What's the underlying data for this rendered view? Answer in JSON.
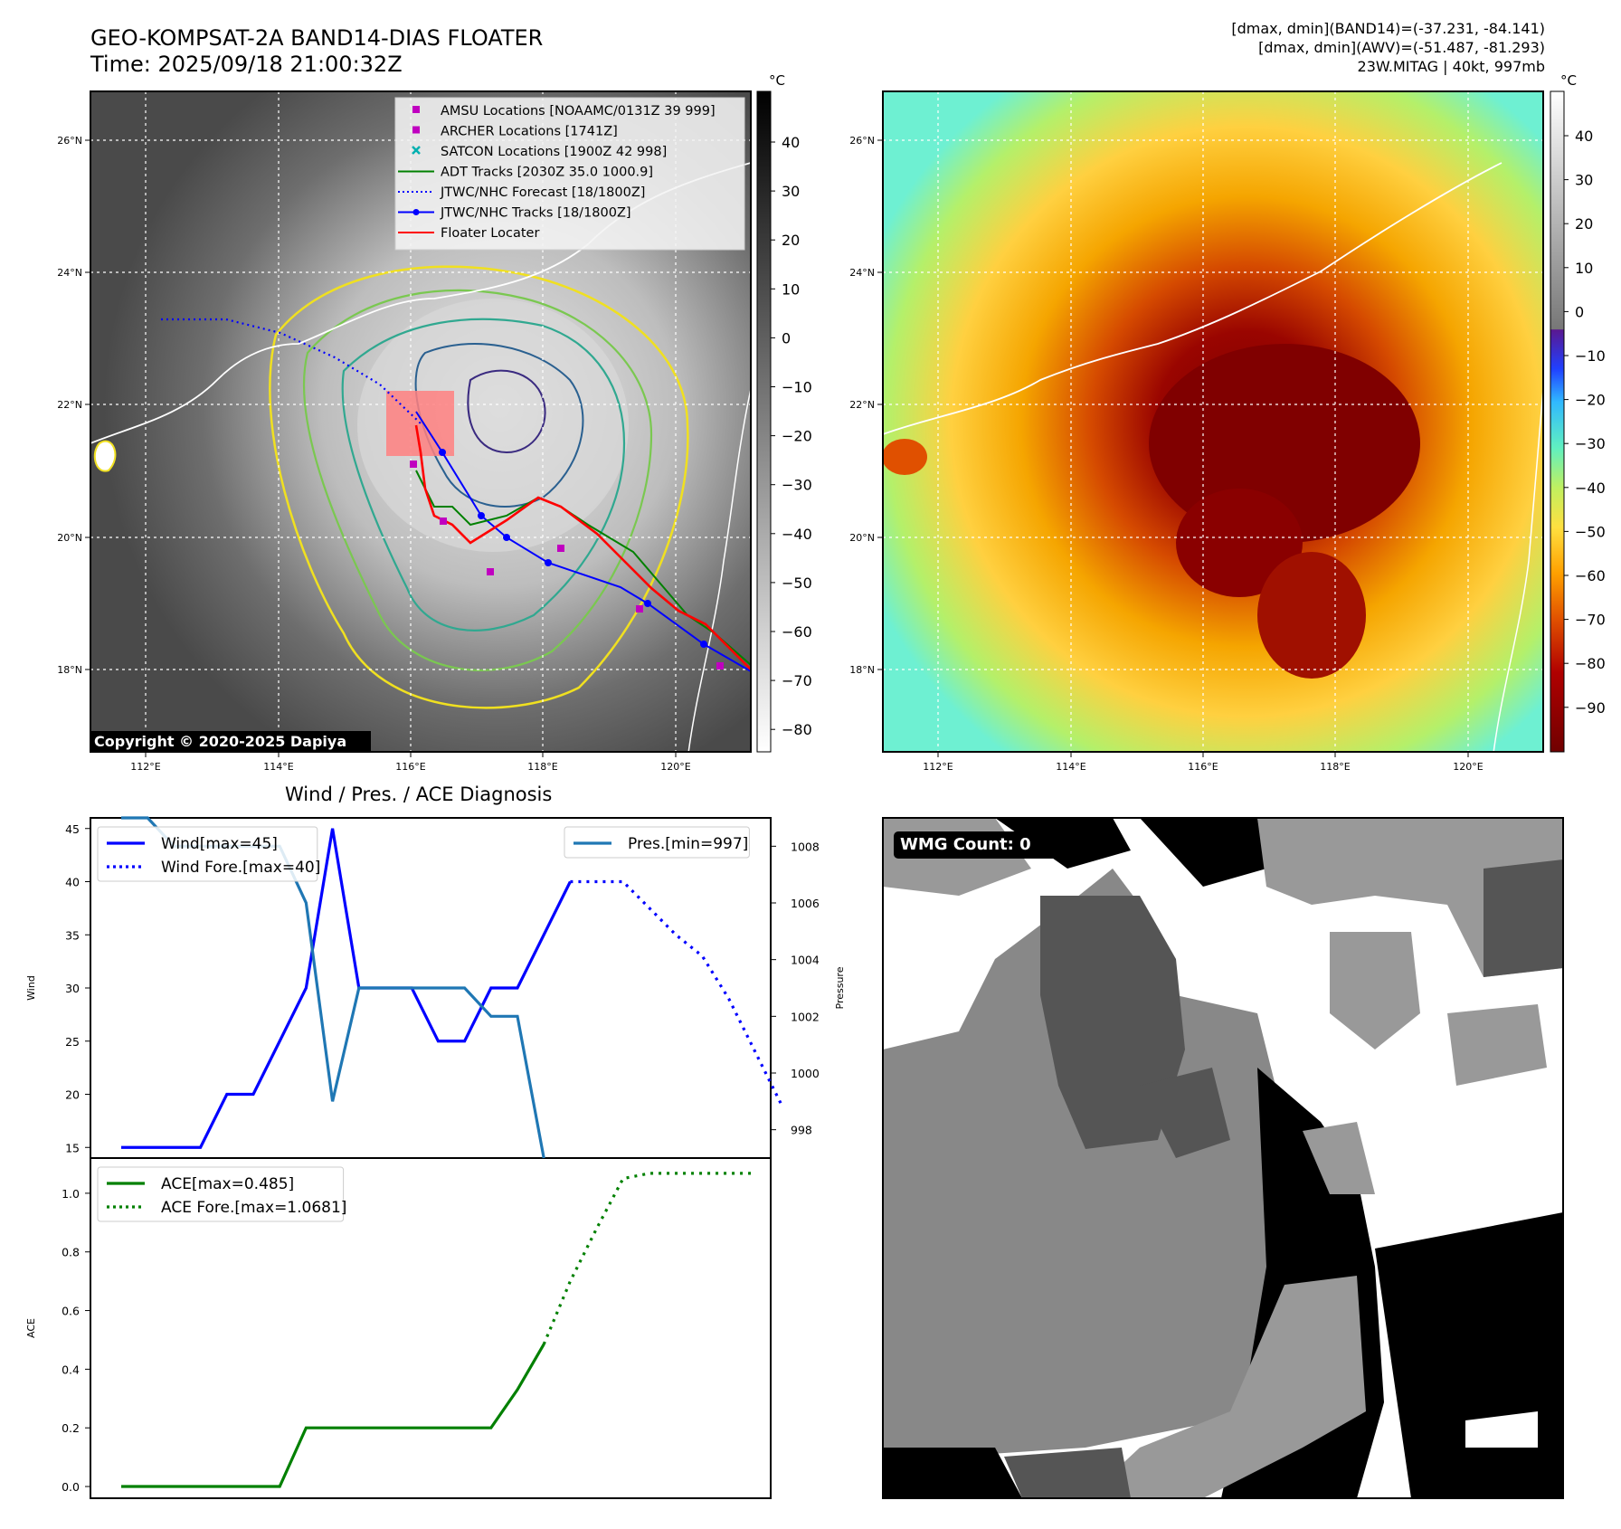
{
  "header": {
    "title": "GEO-KOMPSAT-2A BAND14-DIAS FLOATER",
    "time": "Time: 2025/09/18 21:00:32Z",
    "meta": [
      "[dmax, dmin](BAND14)=(-37.231, -84.141)",
      "[dmax, dmin](AWV)=(-51.487, -81.293)",
      "23W.MITAG | 40kt, 997mb"
    ]
  },
  "map": {
    "lon_ticks": [
      "112°E",
      "114°E",
      "116°E",
      "118°E",
      "120°E"
    ],
    "lat_ticks": [
      "26°N",
      "24°N",
      "22°N",
      "20°N",
      "18°N"
    ],
    "copyright": "Copyright © 2020-2025 Dapiya",
    "legend": [
      {
        "label": "AMSU Locations [NOAAMC/0131Z 39 999]",
        "color": "#c000c0",
        "kind": "square"
      },
      {
        "label": "ARCHER Locations [1741Z]",
        "color": "#c000c0",
        "kind": "square"
      },
      {
        "label": "SATCON Locations [1900Z 42 998]",
        "color": "#00b0b0",
        "kind": "x"
      },
      {
        "label": "ADT Tracks [2030Z 35.0 1000.9]",
        "color": "#008000",
        "kind": "line"
      },
      {
        "label": "JTWC/NHC Forecast [18/1800Z]",
        "color": "#0000ff",
        "kind": "dotted"
      },
      {
        "label": "JTWC/NHC Tracks [18/1800Z]",
        "color": "#0000ff",
        "kind": "line-dot"
      },
      {
        "label": "Floater Locater",
        "color": "#ff0000",
        "kind": "line"
      }
    ]
  },
  "colorbar_ir": {
    "unit": "°C",
    "ticks": [
      "40",
      "30",
      "20",
      "10",
      "0",
      "−10",
      "−20",
      "−30",
      "−40",
      "−50",
      "−60",
      "−70",
      "−80"
    ]
  },
  "colorbar_awv": {
    "unit": "°C",
    "ticks": [
      "40",
      "30",
      "20",
      "10",
      "0",
      "−10",
      "−20",
      "−30",
      "−40",
      "−50",
      "−60",
      "−70",
      "−80",
      "−90"
    ]
  },
  "wmg": {
    "label": "WMG Count: 0"
  },
  "chart_data": [
    {
      "type": "line",
      "title": "Wind / Pres. / ACE Diagnosis",
      "ylabel": "Wind",
      "ylim": [
        14,
        46
      ],
      "yticks": [
        15,
        20,
        25,
        30,
        35,
        40,
        45
      ],
      "series": [
        {
          "name": "Wind[max=45]",
          "color": "#0000ff",
          "style": "solid",
          "values": [
            15,
            15,
            15,
            15,
            20,
            20,
            25,
            30,
            45,
            30,
            30,
            30,
            25,
            25,
            30,
            30,
            35,
            40
          ]
        },
        {
          "name": "Wind Fore.[max=40]",
          "color": "#0000ff",
          "style": "dotted",
          "x_offset": 17,
          "values": [
            40,
            40,
            40,
            37.5,
            35,
            33,
            29,
            24,
            19
          ]
        }
      ]
    },
    {
      "type": "line",
      "ylabel": "Pressure",
      "ylim": [
        997,
        1009
      ],
      "yticks": [
        998,
        1000,
        1002,
        1004,
        1006,
        1008
      ],
      "series": [
        {
          "name": "Pres.[min=997]",
          "color": "#1f77b4",
          "style": "solid",
          "values": [
            1009,
            1009,
            1008,
            1008,
            1008,
            1008,
            1008,
            1006,
            999,
            1003,
            1003,
            1003,
            1003,
            1003,
            1002,
            1002,
            997
          ]
        }
      ]
    },
    {
      "type": "line",
      "ylabel": "ACE",
      "ylim": [
        -0.04,
        1.12
      ],
      "yticks": [
        0.0,
        0.2,
        0.4,
        0.6,
        0.8,
        1.0
      ],
      "series": [
        {
          "name": "ACE[max=0.485]",
          "color": "#008000",
          "style": "solid",
          "values": [
            0,
            0,
            0,
            0,
            0,
            0,
            0,
            0.2,
            0.2,
            0.2,
            0.2,
            0.2,
            0.2,
            0.2,
            0.2,
            0.33,
            0.485
          ]
        },
        {
          "name": "ACE Fore.[max=1.0681]",
          "color": "#008000",
          "style": "dotted",
          "x_offset": 16,
          "values": [
            0.485,
            0.7,
            0.88,
            1.05,
            1.068,
            1.068,
            1.068,
            1.068,
            1.068
          ]
        }
      ]
    }
  ]
}
